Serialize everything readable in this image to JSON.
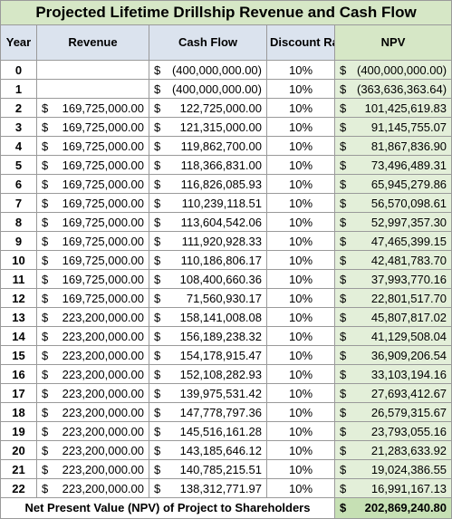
{
  "title": "Projected Lifetime Drillship Revenue and Cash Flow",
  "headers": {
    "year": "Year",
    "revenue": "Revenue",
    "cash_flow": "Cash Flow",
    "discount_rate": "Discount Rate",
    "npv": "NPV"
  },
  "currency_symbol": "$",
  "rows": [
    {
      "year": "0",
      "revenue": "",
      "cash_flow": "(400,000,000.00)",
      "rate": "10%",
      "npv": "(400,000,000.00)"
    },
    {
      "year": "1",
      "revenue": "",
      "cash_flow": "(400,000,000.00)",
      "rate": "10%",
      "npv": "(363,636,363.64)"
    },
    {
      "year": "2",
      "revenue": "169,725,000.00",
      "cash_flow": "122,725,000.00",
      "rate": "10%",
      "npv": "101,425,619.83"
    },
    {
      "year": "3",
      "revenue": "169,725,000.00",
      "cash_flow": "121,315,000.00",
      "rate": "10%",
      "npv": "91,145,755.07"
    },
    {
      "year": "4",
      "revenue": "169,725,000.00",
      "cash_flow": "119,862,700.00",
      "rate": "10%",
      "npv": "81,867,836.90"
    },
    {
      "year": "5",
      "revenue": "169,725,000.00",
      "cash_flow": "118,366,831.00",
      "rate": "10%",
      "npv": "73,496,489.31"
    },
    {
      "year": "6",
      "revenue": "169,725,000.00",
      "cash_flow": "116,826,085.93",
      "rate": "10%",
      "npv": "65,945,279.86"
    },
    {
      "year": "7",
      "revenue": "169,725,000.00",
      "cash_flow": "110,239,118.51",
      "rate": "10%",
      "npv": "56,570,098.61"
    },
    {
      "year": "8",
      "revenue": "169,725,000.00",
      "cash_flow": "113,604,542.06",
      "rate": "10%",
      "npv": "52,997,357.30"
    },
    {
      "year": "9",
      "revenue": "169,725,000.00",
      "cash_flow": "111,920,928.33",
      "rate": "10%",
      "npv": "47,465,399.15"
    },
    {
      "year": "10",
      "revenue": "169,725,000.00",
      "cash_flow": "110,186,806.17",
      "rate": "10%",
      "npv": "42,481,783.70"
    },
    {
      "year": "11",
      "revenue": "169,725,000.00",
      "cash_flow": "108,400,660.36",
      "rate": "10%",
      "npv": "37,993,770.16"
    },
    {
      "year": "12",
      "revenue": "169,725,000.00",
      "cash_flow": "71,560,930.17",
      "rate": "10%",
      "npv": "22,801,517.70"
    },
    {
      "year": "13",
      "revenue": "223,200,000.00",
      "cash_flow": "158,141,008.08",
      "rate": "10%",
      "npv": "45,807,817.02"
    },
    {
      "year": "14",
      "revenue": "223,200,000.00",
      "cash_flow": "156,189,238.32",
      "rate": "10%",
      "npv": "41,129,508.04"
    },
    {
      "year": "15",
      "revenue": "223,200,000.00",
      "cash_flow": "154,178,915.47",
      "rate": "10%",
      "npv": "36,909,206.54"
    },
    {
      "year": "16",
      "revenue": "223,200,000.00",
      "cash_flow": "152,108,282.93",
      "rate": "10%",
      "npv": "33,103,194.16"
    },
    {
      "year": "17",
      "revenue": "223,200,000.00",
      "cash_flow": "139,975,531.42",
      "rate": "10%",
      "npv": "27,693,412.67"
    },
    {
      "year": "18",
      "revenue": "223,200,000.00",
      "cash_flow": "147,778,797.36",
      "rate": "10%",
      "npv": "26,579,315.67"
    },
    {
      "year": "19",
      "revenue": "223,200,000.00",
      "cash_flow": "145,516,161.28",
      "rate": "10%",
      "npv": "23,793,055.16"
    },
    {
      "year": "20",
      "revenue": "223,200,000.00",
      "cash_flow": "143,185,646.12",
      "rate": "10%",
      "npv": "21,283,633.92"
    },
    {
      "year": "21",
      "revenue": "223,200,000.00",
      "cash_flow": "140,785,215.51",
      "rate": "10%",
      "npv": "19,024,386.55"
    },
    {
      "year": "22",
      "revenue": "223,200,000.00",
      "cash_flow": "138,312,771.97",
      "rate": "10%",
      "npv": "16,991,167.13"
    }
  ],
  "footer": {
    "label": "Net Present Value (NPV) of Project to Shareholders",
    "total": "202,869,240.80"
  },
  "colors": {
    "header_fill": "#dbe3ee",
    "npv_fill": "#e3efd9",
    "title_fill": "#d6e7c6",
    "total_fill": "#c6e0b4"
  }
}
